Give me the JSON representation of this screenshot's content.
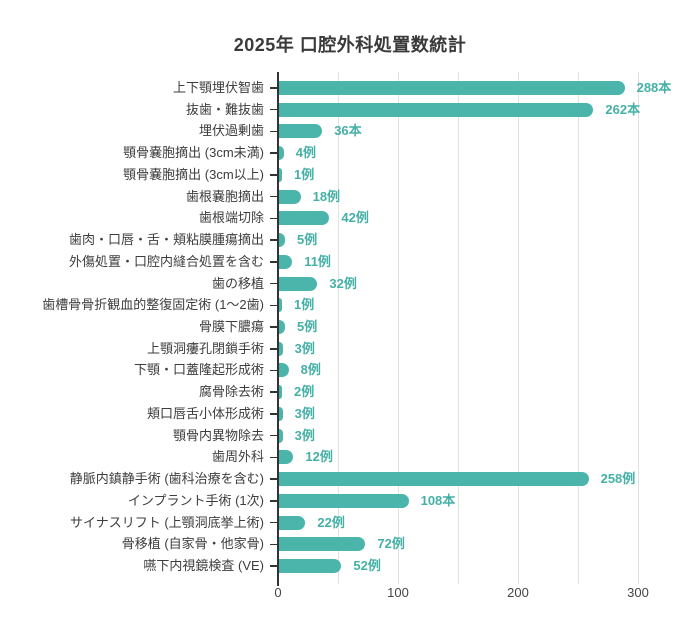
{
  "title": "2025年 口腔外科処置数統計",
  "colors": {
    "background": "#ffffff",
    "bar": "#4cb5ab",
    "value_label": "#45b0a6",
    "grid": "#e2e2e2",
    "axis": "#333333",
    "category_label": "#3d3d3d",
    "tick_label": "#444444",
    "title": "#3a3a3a"
  },
  "chart_data": {
    "type": "bar",
    "orientation": "horizontal",
    "title": "2025年 口腔外科処置数統計",
    "categories": [
      "上下顎埋伏智歯",
      "抜歯・難抜歯",
      "埋伏過剰歯",
      "顎骨嚢胞摘出 (3cm未満)",
      "顎骨嚢胞摘出 (3cm以上)",
      "歯根嚢胞摘出",
      "歯根端切除",
      "歯肉・口唇・舌・頬粘膜腫瘍摘出",
      "外傷処置・口腔内縫合処置を含む",
      "歯の移植",
      "歯槽骨骨折観血的整復固定術 (1～2歯)",
      "骨膜下膿瘍",
      "上顎洞瘻孔閉鎖手術",
      "下顎・口蓋隆起形成術",
      "腐骨除去術",
      "頬口唇舌小体形成術",
      "顎骨内異物除去",
      "歯周外科",
      "静脈内鎮静手術 (歯科治療を含む)",
      "インプラント手術 (1次)",
      "サイナスリフト (上顎洞底挙上術)",
      "骨移植 (自家骨・他家骨)",
      "嚥下内視鏡検査 (VE)"
    ],
    "values": [
      288,
      262,
      36,
      4,
      1,
      18,
      42,
      5,
      11,
      32,
      1,
      5,
      3,
      8,
      2,
      3,
      3,
      12,
      258,
      108,
      22,
      72,
      52
    ],
    "value_labels": [
      "288本",
      "262本",
      "36本",
      "4例",
      "1例",
      "18例",
      "42例",
      "5例",
      "11例",
      "32例",
      "1例",
      "5例",
      "3例",
      "8例",
      "2例",
      "3例",
      "3例",
      "12例",
      "258例",
      "108本",
      "22例",
      "72例",
      "52例"
    ],
    "xlim": [
      0,
      350
    ],
    "x_ticks": [
      0,
      100,
      200,
      300
    ],
    "gridline_values": [
      50,
      100,
      150,
      200,
      250,
      300
    ],
    "grid": true,
    "legend": false
  }
}
